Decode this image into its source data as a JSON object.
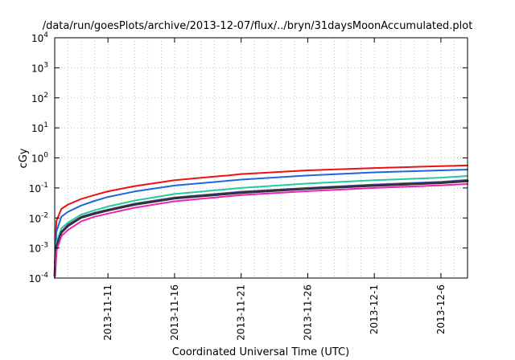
{
  "chart_data": {
    "type": "line",
    "title": "/data/run/goesPlots/archive/2013-12-07/flux/../bryn/31daysMoonAccumulated.plot",
    "xlabel": "Coordinated Universal Time (UTC)",
    "ylabel": "cGy",
    "x_scale": "time",
    "xlim": [
      "2013-11-07",
      "2013-12-08"
    ],
    "x_ticks": [
      "2013-11-11",
      "2013-11-16",
      "2013-11-21",
      "2013-11-26",
      "2013-12-1",
      "2013-12-6"
    ],
    "y_scale": "log",
    "ylim": [
      0.0001,
      10000
    ],
    "y_ticks": [
      {
        "value": 0.0001,
        "base": "10",
        "exp": "-4"
      },
      {
        "value": 0.001,
        "base": "10",
        "exp": "-3"
      },
      {
        "value": 0.01,
        "base": "10",
        "exp": "-2"
      },
      {
        "value": 0.1,
        "base": "10",
        "exp": "-1"
      },
      {
        "value": 1,
        "base": "10",
        "exp": "0"
      },
      {
        "value": 10,
        "base": "10",
        "exp": "1"
      },
      {
        "value": 100,
        "base": "10",
        "exp": "2"
      },
      {
        "value": 1000,
        "base": "10",
        "exp": "3"
      },
      {
        "value": 10000,
        "base": "10",
        "exp": "4"
      }
    ],
    "grid": true,
    "legend": "none",
    "series": [
      {
        "color": "#ee1111",
        "width": 2,
        "x": [
          "2013-11-07",
          "2013-11-07 03:00",
          "2013-11-07 12:00",
          "2013-11-08",
          "2013-11-09",
          "2013-11-10",
          "2013-11-11",
          "2013-11-13",
          "2013-11-16",
          "2013-11-19",
          "2013-11-20",
          "2013-11-21",
          "2013-11-26",
          "2013-12-01",
          "2013-12-06",
          "2013-12-08"
        ],
        "y": [
          0.0003,
          0.008,
          0.02,
          0.028,
          0.043,
          0.058,
          0.077,
          0.115,
          0.18,
          0.24,
          0.26,
          0.29,
          0.385,
          0.46,
          0.53,
          0.56
        ]
      },
      {
        "color": "#1f66dd",
        "width": 2,
        "x": [
          "2013-11-07",
          "2013-11-07 03:00",
          "2013-11-07 12:00",
          "2013-11-08",
          "2013-11-09",
          "2013-11-10",
          "2013-11-11",
          "2013-11-13",
          "2013-11-16",
          "2013-11-21",
          "2013-11-26",
          "2013-12-01",
          "2013-12-06",
          "2013-12-08"
        ],
        "y": [
          0.0002,
          0.0035,
          0.011,
          0.016,
          0.026,
          0.037,
          0.05,
          0.076,
          0.12,
          0.19,
          0.26,
          0.33,
          0.385,
          0.41
        ]
      },
      {
        "color": "#22cc99",
        "width": 2,
        "x": [
          "2013-11-07",
          "2013-11-07 03:00",
          "2013-11-07 12:00",
          "2013-11-08",
          "2013-11-09",
          "2013-11-10",
          "2013-11-11",
          "2013-11-13",
          "2013-11-16",
          "2013-11-21",
          "2013-11-26",
          "2013-12-01",
          "2013-12-06",
          "2013-12-08"
        ],
        "y": [
          0.00015,
          0.0015,
          0.0045,
          0.007,
          0.013,
          0.018,
          0.024,
          0.038,
          0.063,
          0.1,
          0.14,
          0.18,
          0.22,
          0.25
        ]
      },
      {
        "color": "#6655cc",
        "width": 2,
        "x": [
          "2013-11-07",
          "2013-11-07 03:00",
          "2013-11-07 12:00",
          "2013-11-08",
          "2013-11-09",
          "2013-11-10",
          "2013-11-11",
          "2013-11-13",
          "2013-11-16",
          "2013-11-21",
          "2013-11-26",
          "2013-12-01",
          "2013-12-06",
          "2013-12-08"
        ],
        "y": [
          0.00012,
          0.0012,
          0.0035,
          0.006,
          0.011,
          0.015,
          0.019,
          0.03,
          0.048,
          0.075,
          0.1,
          0.13,
          0.16,
          0.185
        ]
      },
      {
        "color": "#333333",
        "width": 3,
        "x": [
          "2013-11-07",
          "2013-11-07 03:00",
          "2013-11-07 12:00",
          "2013-11-08",
          "2013-11-09",
          "2013-11-10",
          "2013-11-11",
          "2013-11-13",
          "2013-11-16",
          "2013-11-21",
          "2013-11-26",
          "2013-12-01",
          "2013-12-06",
          "2013-12-08"
        ],
        "y": [
          0.00012,
          0.0011,
          0.0033,
          0.0055,
          0.0105,
          0.014,
          0.018,
          0.028,
          0.045,
          0.07,
          0.095,
          0.12,
          0.148,
          0.17
        ]
      },
      {
        "color": "#ee22bb",
        "width": 2,
        "x": [
          "2013-11-07",
          "2013-11-07 03:00",
          "2013-11-07 12:00",
          "2013-11-08",
          "2013-11-09",
          "2013-11-10",
          "2013-11-11",
          "2013-11-13",
          "2013-11-16",
          "2013-11-21",
          "2013-11-26",
          "2013-12-01",
          "2013-12-06",
          "2013-12-08"
        ],
        "y": [
          0.0001,
          0.0008,
          0.0025,
          0.004,
          0.0078,
          0.011,
          0.014,
          0.022,
          0.036,
          0.058,
          0.078,
          0.1,
          0.122,
          0.135
        ]
      }
    ]
  }
}
